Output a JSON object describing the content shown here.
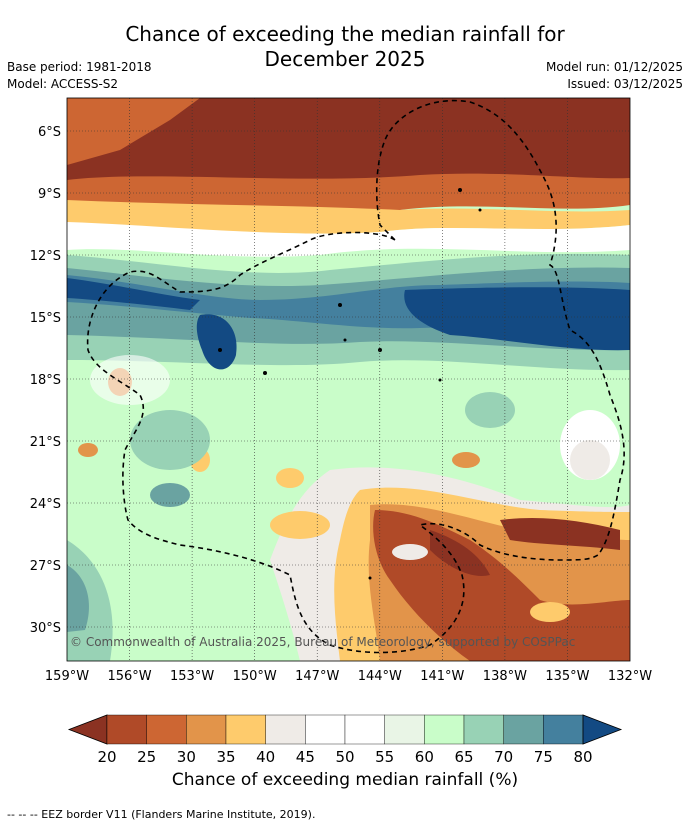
{
  "title_line1": "Chance of exceeding the median rainfall for",
  "title_line2": "December 2025",
  "base_period": "Base period: 1981-2018",
  "model": "Model: ACCESS-S2",
  "model_run": "Model run: 01/12/2025",
  "issued": "Issued: 03/12/2025",
  "copyright": "© Commonwealth of Australia 2025, Bureau of Meteorology, supported by COSPPac",
  "lat_labels": [
    "6°S",
    "9°S",
    "12°S",
    "15°S",
    "18°S",
    "21°S",
    "24°S",
    "27°S",
    "30°S"
  ],
  "lon_labels": [
    "159°W",
    "156°W",
    "153°W",
    "150°W",
    "147°W",
    "144°W",
    "141°W",
    "138°W",
    "135°W",
    "132°W"
  ],
  "colorbar": {
    "ticks": [
      "20",
      "25",
      "30",
      "35",
      "40",
      "45",
      "50",
      "55",
      "60",
      "65",
      "70",
      "75",
      "80"
    ],
    "colors": [
      "#8b3222",
      "#b04a28",
      "#cd6633",
      "#e2944a",
      "#fecb6c",
      "#efebe7",
      "#ffffff",
      "#ffffff",
      "#e9f5e6",
      "#c9fdc9",
      "#98d2b5",
      "#6aa3a1",
      "#44809e",
      "#134a83"
    ],
    "label": "Chance of exceeding median rainfall (%)"
  },
  "footer": "--  --  -- EEZ border V11 (Flanders Marine Institute, 2019)."
}
